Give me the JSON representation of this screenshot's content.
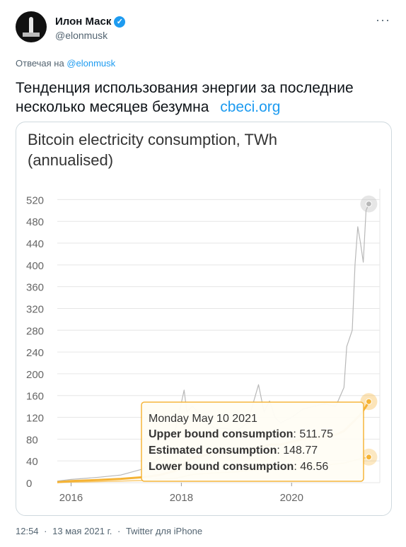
{
  "author": {
    "name": "Илон Маск",
    "handle": "@elonmusk"
  },
  "reply": {
    "prefix": "Отвечая на",
    "to": "@elonmusk"
  },
  "tweet": {
    "text": "Тенденция использования энергии за последние несколько месяцев безумна",
    "link": "cbeci.org"
  },
  "icons": {
    "more": "more-options-icon",
    "verified": "verified-badge-icon",
    "avatar": "rocket-avatar"
  },
  "colors": {
    "accent": "#1d9bf0",
    "estimated": "#f5b335",
    "upper": "#b8b8b8"
  },
  "chart_data": {
    "type": "line",
    "title": "Bitcoin electricity consumption, TWh (annualised)",
    "title_line1": "Bitcoin electricity consumption, TWh",
    "title_line2": "(annualised)",
    "xlim": [
      2015.75,
      2021.6
    ],
    "ylim": [
      0,
      540
    ],
    "xticks": [
      2016,
      2018,
      2020
    ],
    "xtick_labels": [
      "2016",
      "2018",
      "2020"
    ],
    "yticks": [
      0,
      40,
      80,
      120,
      160,
      200,
      240,
      280,
      320,
      360,
      400,
      440,
      480,
      520
    ],
    "ytick_labels": [
      "0",
      "40",
      "80",
      "120",
      "160",
      "200",
      "240",
      "280",
      "320",
      "360",
      "400",
      "440",
      "480",
      "520"
    ],
    "series": [
      {
        "name": "Upper bound consumption",
        "color": "#b8b8b8",
        "x": [
          2015.75,
          2016.0,
          2016.5,
          2016.9,
          2017.3,
          2017.6,
          2017.9,
          2018.05,
          2018.1,
          2018.2,
          2018.4,
          2018.6,
          2018.8,
          2019.0,
          2019.2,
          2019.4,
          2019.5,
          2019.6,
          2019.7,
          2019.8,
          2020.0,
          2020.2,
          2020.4,
          2020.6,
          2020.8,
          2020.95,
          2021.0,
          2021.1,
          2021.15,
          2021.2,
          2021.25,
          2021.3,
          2021.35,
          2021.4
        ],
        "values": [
          3,
          6,
          10,
          14,
          25,
          45,
          100,
          170,
          130,
          140,
          120,
          100,
          100,
          95,
          110,
          180,
          130,
          150,
          120,
          110,
          120,
          135,
          140,
          145,
          140,
          175,
          250,
          280,
          400,
          470,
          440,
          405,
          500,
          512
        ]
      },
      {
        "name": "Estimated consumption",
        "color": "#f5b335",
        "x": [
          2015.75,
          2016.0,
          2016.5,
          2016.9,
          2017.3,
          2017.6,
          2017.9,
          2018.05,
          2018.2,
          2018.4,
          2018.6,
          2018.8,
          2019.0,
          2019.2,
          2019.4,
          2019.6,
          2019.8,
          2020.0,
          2020.2,
          2020.4,
          2020.6,
          2020.8,
          2020.95,
          2021.05,
          2021.15,
          2021.25,
          2021.35,
          2021.4
        ],
        "values": [
          1,
          3,
          5,
          7,
          10,
          14,
          22,
          35,
          45,
          50,
          55,
          55,
          55,
          60,
          65,
          70,
          70,
          75,
          80,
          82,
          85,
          88,
          95,
          105,
          115,
          125,
          140,
          149
        ]
      },
      {
        "name": "Lower bound consumption",
        "color": "#f5b335",
        "x": [
          2015.75,
          2016.5,
          2017.3,
          2017.9,
          2018.2,
          2018.6,
          2019.0,
          2019.4,
          2019.8,
          2020.2,
          2020.6,
          2020.95,
          2021.1,
          2021.25,
          2021.4
        ],
        "values": [
          0.5,
          2,
          4,
          8,
          15,
          18,
          20,
          24,
          25,
          28,
          32,
          36,
          40,
          44,
          47
        ]
      }
    ],
    "tooltip": {
      "date": "Monday May 10 2021",
      "rows": [
        {
          "label": "Upper bound consumption",
          "value": "511.75"
        },
        {
          "label": "Estimated consumption",
          "value": "148.77"
        },
        {
          "label": "Lower bound consumption",
          "value": "46.56"
        }
      ]
    },
    "grid": true,
    "legend": "none"
  },
  "footer": {
    "time": "12:54",
    "sep1": "·",
    "date": "13 мая 2021 г.",
    "sep2": "·",
    "source": "Twitter для iPhone"
  }
}
